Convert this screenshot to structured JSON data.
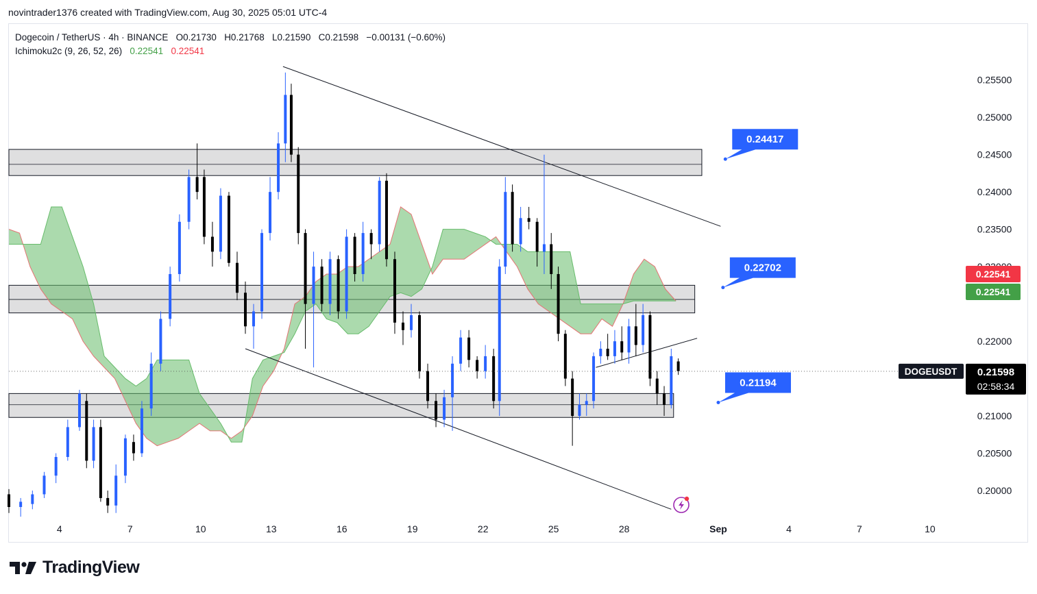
{
  "header": {
    "caption": "novintrader1376 created with TradingView.com, Aug 30, 2025 05:01 UTC-4"
  },
  "legend": {
    "symbol": "Dogecoin / TetherUS · 4h · BINANCE",
    "open": "O0.21730",
    "high": "H0.21768",
    "low": "L0.21590",
    "close": "C0.21598",
    "change": "−0.00131 (−0.60%)",
    "indicator": "Ichimoku2c (9, 26, 52, 26)",
    "ind_val_1": "0.22541",
    "ind_val_2": "0.22541"
  },
  "footer": {
    "logo_text": "TradingView"
  },
  "colors": {
    "bull": "#2962ff",
    "bear": "#000000",
    "cloud_fill": "#66bb6a",
    "cloud_edge": "#e57373",
    "zone_fill": "#d9d9db",
    "callout": "#2962ff",
    "badge_red": "#f23645",
    "badge_green": "#43a047"
  },
  "chart_data": {
    "type": "candlestick",
    "symbol_badge": "DOGEUSDT",
    "last_price": "0.21598",
    "countdown": "02:58:34",
    "price_badges": [
      {
        "label": "0.22541",
        "color": "red"
      },
      {
        "label": "0.22541",
        "color": "green"
      }
    ],
    "y_ticks": [
      "0.25500",
      "0.25000",
      "0.24500",
      "0.24000",
      "0.23500",
      "0.23000",
      "0.22000",
      "0.21000",
      "0.20500",
      "0.20000"
    ],
    "y_tick_values": [
      0.255,
      0.25,
      0.245,
      0.24,
      0.235,
      0.23,
      0.22,
      0.21,
      0.205,
      0.2
    ],
    "ylim": [
      0.1967,
      0.2625
    ],
    "x_ticks": [
      "4",
      "7",
      "10",
      "13",
      "16",
      "19",
      "22",
      "25",
      "28",
      "Sep",
      "4",
      "7",
      "10"
    ],
    "x_tick_days": [
      4,
      7,
      10,
      13,
      16,
      19,
      22,
      25,
      28,
      32,
      35,
      38,
      41
    ],
    "xlim_days": [
      1.85,
      42.4
    ],
    "zones": [
      {
        "top": 0.2457,
        "bottom": 0.2422,
        "mid": 0.2437,
        "end_day": 31.3
      },
      {
        "top": 0.2275,
        "bottom": 0.2238,
        "mid": 0.2256,
        "end_day": 31.0
      },
      {
        "top": 0.213,
        "bottom": 0.2098,
        "mid": 0.2115,
        "end_day": 30.1
      }
    ],
    "callouts": [
      {
        "label": "0.24417",
        "day": 32.3,
        "price": 0.2444
      },
      {
        "label": "0.22702",
        "day": 32.2,
        "price": 0.2272
      },
      {
        "label": "0.21194",
        "day": 32.0,
        "price": 0.2118
      }
    ],
    "trendlines": [
      {
        "from": [
          13.5,
          0.2568
        ],
        "to": [
          32.1,
          0.2354
        ]
      },
      {
        "from": [
          11.9,
          0.219
        ],
        "to": [
          30.0,
          0.1975
        ]
      },
      {
        "from": [
          26.8,
          0.2165
        ],
        "to": [
          31.1,
          0.2204
        ]
      }
    ],
    "cloud": {
      "days": [
        1.85,
        2.3,
        2.75,
        3.2,
        3.65,
        4.1,
        4.55,
        5.0,
        5.45,
        5.9,
        6.35,
        6.8,
        7.25,
        7.7,
        8.15,
        8.6,
        9.05,
        9.5,
        9.95,
        10.4,
        10.85,
        11.3,
        11.75,
        12.2,
        12.65,
        13.1,
        13.55,
        14.0,
        14.45,
        14.9,
        15.35,
        15.8,
        16.25,
        16.7,
        17.15,
        17.6,
        18.05,
        18.5,
        18.95,
        19.4,
        19.85,
        20.3,
        20.75,
        21.2,
        21.65,
        22.1,
        22.55,
        23.0,
        23.45,
        23.9,
        24.35,
        24.8,
        25.25,
        25.7,
        26.15,
        26.6,
        27.05,
        27.5,
        27.95,
        28.4,
        28.85,
        29.3,
        29.75,
        30.2
      ],
      "span_a": [
        0.235,
        0.2345,
        0.23,
        0.227,
        0.225,
        0.224,
        0.223,
        0.22,
        0.218,
        0.2165,
        0.215,
        0.212,
        0.209,
        0.207,
        0.206,
        0.2065,
        0.207,
        0.208,
        0.209,
        0.208,
        0.208,
        0.207,
        0.208,
        0.21,
        0.214,
        0.216,
        0.219,
        0.225,
        0.226,
        0.228,
        0.229,
        0.229,
        0.23,
        0.23,
        0.231,
        0.232,
        0.233,
        0.238,
        0.237,
        0.233,
        0.229,
        0.231,
        0.231,
        0.231,
        0.232,
        0.233,
        0.234,
        0.232,
        0.23,
        0.227,
        0.225,
        0.224,
        0.223,
        0.222,
        0.221,
        0.221,
        0.223,
        0.222,
        0.225,
        0.229,
        0.231,
        0.23,
        0.227,
        0.2254
      ],
      "span_b": [
        0.233,
        0.233,
        0.233,
        0.233,
        0.238,
        0.238,
        0.234,
        0.23,
        0.225,
        0.218,
        0.2165,
        0.215,
        0.214,
        0.215,
        0.2175,
        0.2175,
        0.2175,
        0.2175,
        0.213,
        0.211,
        0.209,
        0.2065,
        0.2065,
        0.215,
        0.2175,
        0.218,
        0.2185,
        0.221,
        0.224,
        0.225,
        0.223,
        0.2225,
        0.221,
        0.221,
        0.222,
        0.224,
        0.226,
        0.2265,
        0.226,
        0.227,
        0.23,
        0.235,
        0.235,
        0.235,
        0.2345,
        0.234,
        0.233,
        0.233,
        0.233,
        0.232,
        0.232,
        0.232,
        0.232,
        0.232,
        0.225,
        0.225,
        0.225,
        0.225,
        0.225,
        0.2254,
        0.2254,
        0.2254,
        0.2254,
        0.2254
      ]
    },
    "candles": [
      {
        "t": 1.85,
        "o": 0.1995,
        "h": 0.2002,
        "l": 0.197,
        "c": 0.1978
      },
      {
        "t": 2.35,
        "o": 0.1978,
        "h": 0.199,
        "l": 0.1965,
        "c": 0.1985
      },
      {
        "t": 2.85,
        "o": 0.1982,
        "h": 0.2,
        "l": 0.1975,
        "c": 0.1995
      },
      {
        "t": 3.35,
        "o": 0.1995,
        "h": 0.2025,
        "l": 0.199,
        "c": 0.202
      },
      {
        "t": 3.85,
        "o": 0.202,
        "h": 0.205,
        "l": 0.201,
        "c": 0.2045
      },
      {
        "t": 4.35,
        "o": 0.2045,
        "h": 0.2095,
        "l": 0.204,
        "c": 0.2085
      },
      {
        "t": 4.85,
        "o": 0.2085,
        "h": 0.2135,
        "l": 0.208,
        "c": 0.213
      },
      {
        "t": 5.15,
        "o": 0.212,
        "h": 0.213,
        "l": 0.203,
        "c": 0.204
      },
      {
        "t": 5.45,
        "o": 0.204,
        "h": 0.2095,
        "l": 0.203,
        "c": 0.2085
      },
      {
        "t": 5.75,
        "o": 0.2085,
        "h": 0.2095,
        "l": 0.1985,
        "c": 0.199
      },
      {
        "t": 6.05,
        "o": 0.199,
        "h": 0.2,
        "l": 0.197,
        "c": 0.198
      },
      {
        "t": 6.4,
        "o": 0.198,
        "h": 0.2035,
        "l": 0.197,
        "c": 0.202
      },
      {
        "t": 6.8,
        "o": 0.202,
        "h": 0.2075,
        "l": 0.201,
        "c": 0.207
      },
      {
        "t": 7.15,
        "o": 0.2065,
        "h": 0.2075,
        "l": 0.204,
        "c": 0.205
      },
      {
        "t": 7.5,
        "o": 0.205,
        "h": 0.212,
        "l": 0.2045,
        "c": 0.211
      },
      {
        "t": 7.9,
        "o": 0.211,
        "h": 0.2185,
        "l": 0.21,
        "c": 0.217
      },
      {
        "t": 8.3,
        "o": 0.217,
        "h": 0.224,
        "l": 0.216,
        "c": 0.223
      },
      {
        "t": 8.7,
        "o": 0.223,
        "h": 0.23,
        "l": 0.222,
        "c": 0.229
      },
      {
        "t": 9.1,
        "o": 0.229,
        "h": 0.237,
        "l": 0.228,
        "c": 0.236
      },
      {
        "t": 9.5,
        "o": 0.236,
        "h": 0.243,
        "l": 0.235,
        "c": 0.242
      },
      {
        "t": 9.85,
        "o": 0.242,
        "h": 0.2465,
        "l": 0.239,
        "c": 0.24
      },
      {
        "t": 10.15,
        "o": 0.242,
        "h": 0.243,
        "l": 0.233,
        "c": 0.234
      },
      {
        "t": 10.5,
        "o": 0.234,
        "h": 0.236,
        "l": 0.23,
        "c": 0.232
      },
      {
        "t": 10.85,
        "o": 0.232,
        "h": 0.2405,
        "l": 0.231,
        "c": 0.2395
      },
      {
        "t": 11.2,
        "o": 0.2395,
        "h": 0.24,
        "l": 0.23,
        "c": 0.2305
      },
      {
        "t": 11.55,
        "o": 0.2305,
        "h": 0.232,
        "l": 0.2255,
        "c": 0.2265
      },
      {
        "t": 11.9,
        "o": 0.2265,
        "h": 0.228,
        "l": 0.221,
        "c": 0.222
      },
      {
        "t": 12.25,
        "o": 0.222,
        "h": 0.225,
        "l": 0.219,
        "c": 0.224
      },
      {
        "t": 12.6,
        "o": 0.224,
        "h": 0.235,
        "l": 0.223,
        "c": 0.2345
      },
      {
        "t": 12.95,
        "o": 0.2345,
        "h": 0.242,
        "l": 0.2335,
        "c": 0.24
      },
      {
        "t": 13.3,
        "o": 0.24,
        "h": 0.248,
        "l": 0.239,
        "c": 0.2465
      },
      {
        "t": 13.6,
        "o": 0.2465,
        "h": 0.256,
        "l": 0.244,
        "c": 0.253
      },
      {
        "t": 13.85,
        "o": 0.253,
        "h": 0.2545,
        "l": 0.244,
        "c": 0.245
      },
      {
        "t": 14.15,
        "o": 0.245,
        "h": 0.246,
        "l": 0.233,
        "c": 0.2345
      },
      {
        "t": 14.45,
        "o": 0.2345,
        "h": 0.235,
        "l": 0.219,
        "c": 0.225
      },
      {
        "t": 14.8,
        "o": 0.225,
        "h": 0.232,
        "l": 0.2165,
        "c": 0.23
      },
      {
        "t": 15.15,
        "o": 0.23,
        "h": 0.231,
        "l": 0.224,
        "c": 0.225
      },
      {
        "t": 15.5,
        "o": 0.225,
        "h": 0.232,
        "l": 0.2235,
        "c": 0.231
      },
      {
        "t": 15.85,
        "o": 0.231,
        "h": 0.2315,
        "l": 0.223,
        "c": 0.224
      },
      {
        "t": 16.2,
        "o": 0.224,
        "h": 0.235,
        "l": 0.223,
        "c": 0.234
      },
      {
        "t": 16.55,
        "o": 0.234,
        "h": 0.2345,
        "l": 0.228,
        "c": 0.229
      },
      {
        "t": 16.9,
        "o": 0.229,
        "h": 0.236,
        "l": 0.228,
        "c": 0.2345
      },
      {
        "t": 17.25,
        "o": 0.2345,
        "h": 0.235,
        "l": 0.231,
        "c": 0.233
      },
      {
        "t": 17.6,
        "o": 0.233,
        "h": 0.242,
        "l": 0.232,
        "c": 0.2415
      },
      {
        "t": 17.9,
        "o": 0.2415,
        "h": 0.2425,
        "l": 0.23,
        "c": 0.231
      },
      {
        "t": 18.25,
        "o": 0.231,
        "h": 0.232,
        "l": 0.221,
        "c": 0.2225
      },
      {
        "t": 18.6,
        "o": 0.2225,
        "h": 0.224,
        "l": 0.2195,
        "c": 0.2215
      },
      {
        "t": 18.95,
        "o": 0.2215,
        "h": 0.225,
        "l": 0.2205,
        "c": 0.2235
      },
      {
        "t": 19.3,
        "o": 0.2235,
        "h": 0.224,
        "l": 0.215,
        "c": 0.216
      },
      {
        "t": 19.65,
        "o": 0.216,
        "h": 0.217,
        "l": 0.211,
        "c": 0.212
      },
      {
        "t": 20.0,
        "o": 0.212,
        "h": 0.213,
        "l": 0.2085,
        "c": 0.2095
      },
      {
        "t": 20.35,
        "o": 0.2095,
        "h": 0.2135,
        "l": 0.2085,
        "c": 0.2125
      },
      {
        "t": 20.7,
        "o": 0.2125,
        "h": 0.218,
        "l": 0.208,
        "c": 0.217
      },
      {
        "t": 21.05,
        "o": 0.217,
        "h": 0.2215,
        "l": 0.216,
        "c": 0.2205
      },
      {
        "t": 21.4,
        "o": 0.2205,
        "h": 0.2215,
        "l": 0.2165,
        "c": 0.2175
      },
      {
        "t": 21.75,
        "o": 0.2175,
        "h": 0.218,
        "l": 0.215,
        "c": 0.216
      },
      {
        "t": 22.1,
        "o": 0.216,
        "h": 0.2195,
        "l": 0.215,
        "c": 0.218
      },
      {
        "t": 22.45,
        "o": 0.218,
        "h": 0.219,
        "l": 0.211,
        "c": 0.212
      },
      {
        "t": 22.7,
        "o": 0.212,
        "h": 0.231,
        "l": 0.21,
        "c": 0.23
      },
      {
        "t": 22.95,
        "o": 0.23,
        "h": 0.242,
        "l": 0.229,
        "c": 0.24
      },
      {
        "t": 23.25,
        "o": 0.24,
        "h": 0.241,
        "l": 0.232,
        "c": 0.233
      },
      {
        "t": 23.6,
        "o": 0.233,
        "h": 0.238,
        "l": 0.232,
        "c": 0.2365
      },
      {
        "t": 23.95,
        "o": 0.2365,
        "h": 0.238,
        "l": 0.235,
        "c": 0.236
      },
      {
        "t": 24.3,
        "o": 0.236,
        "h": 0.2365,
        "l": 0.23,
        "c": 0.232
      },
      {
        "t": 24.6,
        "o": 0.232,
        "h": 0.245,
        "l": 0.229,
        "c": 0.233
      },
      {
        "t": 24.9,
        "o": 0.233,
        "h": 0.2345,
        "l": 0.227,
        "c": 0.229
      },
      {
        "t": 25.2,
        "o": 0.229,
        "h": 0.23,
        "l": 0.22,
        "c": 0.221
      },
      {
        "t": 25.5,
        "o": 0.221,
        "h": 0.2215,
        "l": 0.214,
        "c": 0.215
      },
      {
        "t": 25.8,
        "o": 0.215,
        "h": 0.216,
        "l": 0.206,
        "c": 0.21
      },
      {
        "t": 26.1,
        "o": 0.21,
        "h": 0.213,
        "l": 0.2095,
        "c": 0.2115
      },
      {
        "t": 26.4,
        "o": 0.2115,
        "h": 0.213,
        "l": 0.21,
        "c": 0.212
      },
      {
        "t": 26.7,
        "o": 0.212,
        "h": 0.2185,
        "l": 0.211,
        "c": 0.218
      },
      {
        "t": 27.0,
        "o": 0.218,
        "h": 0.22,
        "l": 0.217,
        "c": 0.219
      },
      {
        "t": 27.3,
        "o": 0.219,
        "h": 0.221,
        "l": 0.2175,
        "c": 0.218
      },
      {
        "t": 27.6,
        "o": 0.218,
        "h": 0.2215,
        "l": 0.217,
        "c": 0.22
      },
      {
        "t": 27.9,
        "o": 0.22,
        "h": 0.222,
        "l": 0.2175,
        "c": 0.2185
      },
      {
        "t": 28.2,
        "o": 0.2185,
        "h": 0.223,
        "l": 0.217,
        "c": 0.222
      },
      {
        "t": 28.5,
        "o": 0.222,
        "h": 0.225,
        "l": 0.218,
        "c": 0.2195
      },
      {
        "t": 28.8,
        "o": 0.2195,
        "h": 0.225,
        "l": 0.2185,
        "c": 0.2235
      },
      {
        "t": 29.1,
        "o": 0.2235,
        "h": 0.224,
        "l": 0.214,
        "c": 0.215
      },
      {
        "t": 29.4,
        "o": 0.215,
        "h": 0.216,
        "l": 0.2115,
        "c": 0.213
      },
      {
        "t": 29.7,
        "o": 0.213,
        "h": 0.214,
        "l": 0.21,
        "c": 0.2115
      },
      {
        "t": 30.0,
        "o": 0.2115,
        "h": 0.219,
        "l": 0.211,
        "c": 0.218
      },
      {
        "t": 30.3,
        "o": 0.2173,
        "h": 0.2177,
        "l": 0.2155,
        "c": 0.216
      }
    ]
  }
}
